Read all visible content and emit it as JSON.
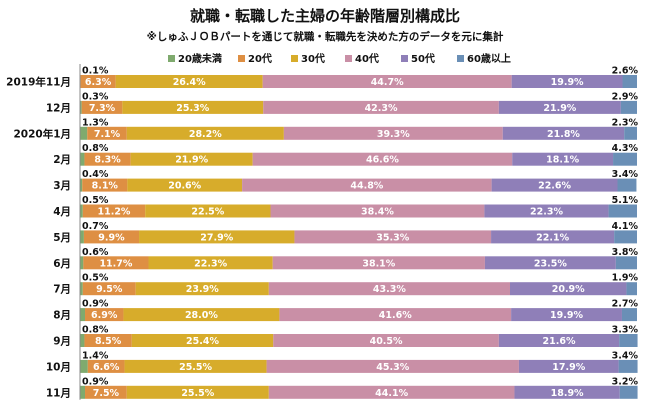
{
  "header": {
    "title": "就職・転職した主婦の年齢階層別構成比",
    "subtitle": "※しゅふＪＯＢパートを通じて就職・転職先を決めた方のデータを元に集計"
  },
  "chart_data": {
    "type": "bar",
    "orientation": "horizontal",
    "stacked": true,
    "percent_stacked": true,
    "xlim": [
      0,
      100
    ],
    "legend_position": "top",
    "categories": [
      "2019年11月",
      "12月",
      "2020年1月",
      "2月",
      "3月",
      "4月",
      "5月",
      "6月",
      "7月",
      "8月",
      "9月",
      "10月",
      "11月"
    ],
    "series": [
      {
        "name": "20歳未満",
        "color": "#7faa6e",
        "values": [
          0.1,
          0.3,
          1.3,
          0.8,
          0.4,
          0.5,
          0.7,
          0.6,
          0.5,
          0.9,
          0.8,
          1.4,
          0.9
        ]
      },
      {
        "name": "20代",
        "color": "#de8f43",
        "values": [
          6.3,
          7.3,
          7.1,
          8.3,
          8.1,
          11.2,
          9.9,
          11.7,
          9.5,
          6.9,
          8.5,
          6.6,
          7.5
        ]
      },
      {
        "name": "30代",
        "color": "#d7ac2b",
        "values": [
          26.4,
          25.3,
          28.2,
          21.9,
          20.6,
          22.5,
          27.9,
          22.3,
          23.9,
          28.0,
          25.4,
          25.5,
          25.5
        ]
      },
      {
        "name": "40代",
        "color": "#c98fa6",
        "values": [
          44.7,
          42.3,
          39.3,
          46.6,
          44.8,
          38.4,
          35.3,
          38.1,
          43.3,
          41.6,
          40.5,
          45.3,
          44.1
        ]
      },
      {
        "name": "50代",
        "color": "#8f7fb8",
        "values": [
          19.9,
          21.9,
          21.8,
          18.1,
          22.6,
          22.3,
          22.1,
          23.5,
          20.9,
          19.9,
          21.6,
          17.9,
          18.9
        ]
      },
      {
        "name": "60歳以上",
        "color": "#6a8fb6",
        "values": [
          2.6,
          2.9,
          2.3,
          4.3,
          3.4,
          5.1,
          4.1,
          3.8,
          1.9,
          2.7,
          3.3,
          3.4,
          3.2
        ]
      }
    ],
    "value_labels": {
      "first_series": [
        "0.1%",
        "0.3%",
        "1.3%",
        "0.8%",
        "0.4%",
        "0.5%",
        "0.7%",
        "0.6%",
        "0.5%",
        "0.9%",
        "0.8%",
        "1.4%",
        "0.9%"
      ],
      "last_series": [
        "2.6%",
        "2.9%",
        "2.3%",
        "4.3%",
        "3.4%",
        "5.1%",
        "4.1%",
        "3.8%",
        "1.9%",
        "2.7%",
        "3.3%",
        "3.4%",
        "3.2%"
      ]
    }
  }
}
